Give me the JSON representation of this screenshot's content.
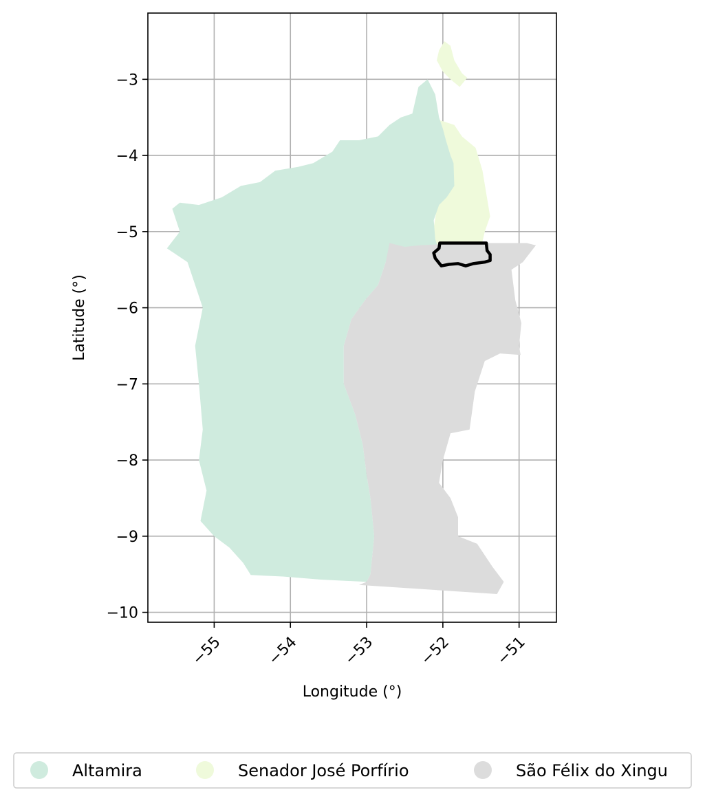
{
  "map": {
    "xlabel": "Longitude (°)",
    "ylabel": "Latitude (°)",
    "xlim": [
      -55.87,
      -50.51
    ],
    "ylim": [
      -10.13,
      -2.13
    ],
    "x_ticks": [
      -55,
      -54,
      -53,
      -52,
      -51
    ],
    "y_ticks": [
      -3,
      -4,
      -5,
      -6,
      -7,
      -8,
      -9,
      -10
    ],
    "grid": true,
    "legend": {
      "placement": "bottom-center",
      "entries": [
        {
          "name": "Altamira",
          "color": "#cfebde"
        },
        {
          "name": "Senador José Porfírio",
          "color": "#effadb"
        },
        {
          "name": "São Félix do Xingu",
          "color": "#dcdcdc"
        }
      ]
    },
    "regions": [
      {
        "name": "Senador José Porfírio",
        "color": "#effadb",
        "polygons": [
          [
            [
              -52.05,
              -2.62
            ],
            [
              -51.98,
              -2.5
            ],
            [
              -51.9,
              -2.56
            ],
            [
              -51.85,
              -2.75
            ],
            [
              -51.75,
              -2.92
            ],
            [
              -51.68,
              -2.98
            ],
            [
              -51.78,
              -3.1
            ],
            [
              -51.9,
              -3.0
            ],
            [
              -52.0,
              -2.9
            ],
            [
              -52.08,
              -2.75
            ]
          ],
          [
            [
              -52.3,
              -3.7
            ],
            [
              -52.18,
              -3.5
            ],
            [
              -52.0,
              -3.55
            ],
            [
              -51.85,
              -3.6
            ],
            [
              -51.75,
              -3.75
            ],
            [
              -51.57,
              -3.9
            ],
            [
              -51.48,
              -4.2
            ],
            [
              -51.43,
              -4.5
            ],
            [
              -51.38,
              -4.8
            ],
            [
              -51.45,
              -5.0
            ],
            [
              -51.52,
              -5.3
            ],
            [
              -51.6,
              -5.4
            ],
            [
              -51.75,
              -5.4
            ],
            [
              -51.9,
              -5.38
            ],
            [
              -52.05,
              -5.35
            ],
            [
              -52.1,
              -5.1
            ],
            [
              -52.12,
              -4.95
            ],
            [
              -52.08,
              -4.7
            ],
            [
              -52.0,
              -4.55
            ],
            [
              -51.9,
              -4.45
            ],
            [
              -52.08,
              -4.4
            ],
            [
              -52.18,
              -4.2
            ],
            [
              -52.25,
              -3.95
            ]
          ]
        ]
      },
      {
        "name": "Altamira",
        "color": "#cfebde",
        "polygons": [
          [
            [
              -52.4,
              -3.45
            ],
            [
              -52.32,
              -3.1
            ],
            [
              -52.2,
              -3.0
            ],
            [
              -52.1,
              -3.2
            ],
            [
              -52.05,
              -3.5
            ],
            [
              -52.0,
              -3.65
            ],
            [
              -51.96,
              -3.8
            ],
            [
              -51.9,
              -4.0
            ],
            [
              -51.86,
              -4.1
            ],
            [
              -51.85,
              -4.4
            ],
            [
              -51.95,
              -4.55
            ],
            [
              -52.05,
              -4.65
            ],
            [
              -52.12,
              -4.85
            ],
            [
              -52.1,
              -5.1
            ],
            [
              -52.05,
              -5.25
            ],
            [
              -52.4,
              -5.25
            ],
            [
              -52.6,
              -5.25
            ],
            [
              -52.75,
              -5.4
            ],
            [
              -52.85,
              -5.7
            ],
            [
              -53.02,
              -5.9
            ],
            [
              -53.2,
              -6.15
            ],
            [
              -53.3,
              -6.5
            ],
            [
              -53.3,
              -7.0
            ],
            [
              -53.15,
              -7.4
            ],
            [
              -53.05,
              -7.8
            ],
            [
              -53.0,
              -8.2
            ],
            [
              -52.95,
              -8.5
            ],
            [
              -52.9,
              -9.0
            ],
            [
              -52.95,
              -9.5
            ],
            [
              -53.0,
              -9.6
            ],
            [
              -53.6,
              -9.57
            ],
            [
              -54.1,
              -9.53
            ],
            [
              -54.52,
              -9.51
            ],
            [
              -54.62,
              -9.35
            ],
            [
              -54.8,
              -9.15
            ],
            [
              -55.0,
              -9.0
            ],
            [
              -55.18,
              -8.8
            ],
            [
              -55.1,
              -8.4
            ],
            [
              -55.2,
              -8.0
            ],
            [
              -55.15,
              -7.6
            ],
            [
              -55.2,
              -7.0
            ],
            [
              -55.25,
              -6.5
            ],
            [
              -55.15,
              -6.0
            ],
            [
              -55.25,
              -5.7
            ],
            [
              -55.35,
              -5.4
            ],
            [
              -55.62,
              -5.22
            ],
            [
              -55.45,
              -5.0
            ],
            [
              -55.55,
              -4.7
            ],
            [
              -55.45,
              -4.62
            ],
            [
              -55.2,
              -4.65
            ],
            [
              -54.9,
              -4.55
            ],
            [
              -54.65,
              -4.4
            ],
            [
              -54.4,
              -4.35
            ],
            [
              -54.2,
              -4.2
            ],
            [
              -53.9,
              -4.15
            ],
            [
              -53.7,
              -4.1
            ],
            [
              -53.45,
              -3.95
            ],
            [
              -53.35,
              -3.8
            ],
            [
              -53.1,
              -3.8
            ],
            [
              -52.85,
              -3.75
            ],
            [
              -52.7,
              -3.6
            ],
            [
              -52.55,
              -3.5
            ]
          ]
        ]
      },
      {
        "name": "São Félix do Xingu",
        "color": "#dcdcdc",
        "polygons": [
          [
            [
              -52.7,
              -5.15
            ],
            [
              -52.5,
              -5.2
            ],
            [
              -52.3,
              -5.18
            ],
            [
              -51.7,
              -5.15
            ],
            [
              -51.3,
              -5.15
            ],
            [
              -50.9,
              -5.15
            ],
            [
              -50.78,
              -5.18
            ],
            [
              -50.95,
              -5.4
            ],
            [
              -51.1,
              -5.5
            ],
            [
              -51.05,
              -5.9
            ],
            [
              -50.97,
              -6.2
            ],
            [
              -51.0,
              -6.5
            ],
            [
              -50.98,
              -6.62
            ],
            [
              -51.25,
              -6.6
            ],
            [
              -51.45,
              -6.7
            ],
            [
              -51.58,
              -7.1
            ],
            [
              -51.65,
              -7.6
            ],
            [
              -51.9,
              -7.65
            ],
            [
              -52.0,
              -8.0
            ],
            [
              -52.05,
              -8.3
            ],
            [
              -51.9,
              -8.5
            ],
            [
              -51.8,
              -8.75
            ],
            [
              -51.8,
              -9.0
            ],
            [
              -51.55,
              -9.1
            ],
            [
              -51.35,
              -9.4
            ],
            [
              -51.2,
              -9.6
            ],
            [
              -51.29,
              -9.76
            ],
            [
              -53.1,
              -9.64
            ],
            [
              -53.0,
              -9.6
            ],
            [
              -52.95,
              -9.5
            ],
            [
              -52.9,
              -9.0
            ],
            [
              -52.95,
              -8.5
            ],
            [
              -53.0,
              -8.2
            ],
            [
              -53.05,
              -7.8
            ],
            [
              -53.15,
              -7.4
            ],
            [
              -53.3,
              -7.0
            ],
            [
              -53.3,
              -6.5
            ],
            [
              -53.2,
              -6.15
            ],
            [
              -53.02,
              -5.9
            ],
            [
              -52.85,
              -5.7
            ],
            [
              -52.75,
              -5.4
            ]
          ]
        ]
      }
    ],
    "highlight": {
      "polygon": [
        [
          -52.04,
          -5.15
        ],
        [
          -51.43,
          -5.15
        ],
        [
          -51.42,
          -5.25
        ],
        [
          -51.38,
          -5.3
        ],
        [
          -51.38,
          -5.38
        ],
        [
          -51.45,
          -5.4
        ],
        [
          -51.6,
          -5.42
        ],
        [
          -51.7,
          -5.45
        ],
        [
          -51.8,
          -5.42
        ],
        [
          -51.92,
          -5.43
        ],
        [
          -52.02,
          -5.45
        ],
        [
          -52.1,
          -5.35
        ],
        [
          -52.12,
          -5.28
        ],
        [
          -52.05,
          -5.22
        ]
      ]
    }
  }
}
